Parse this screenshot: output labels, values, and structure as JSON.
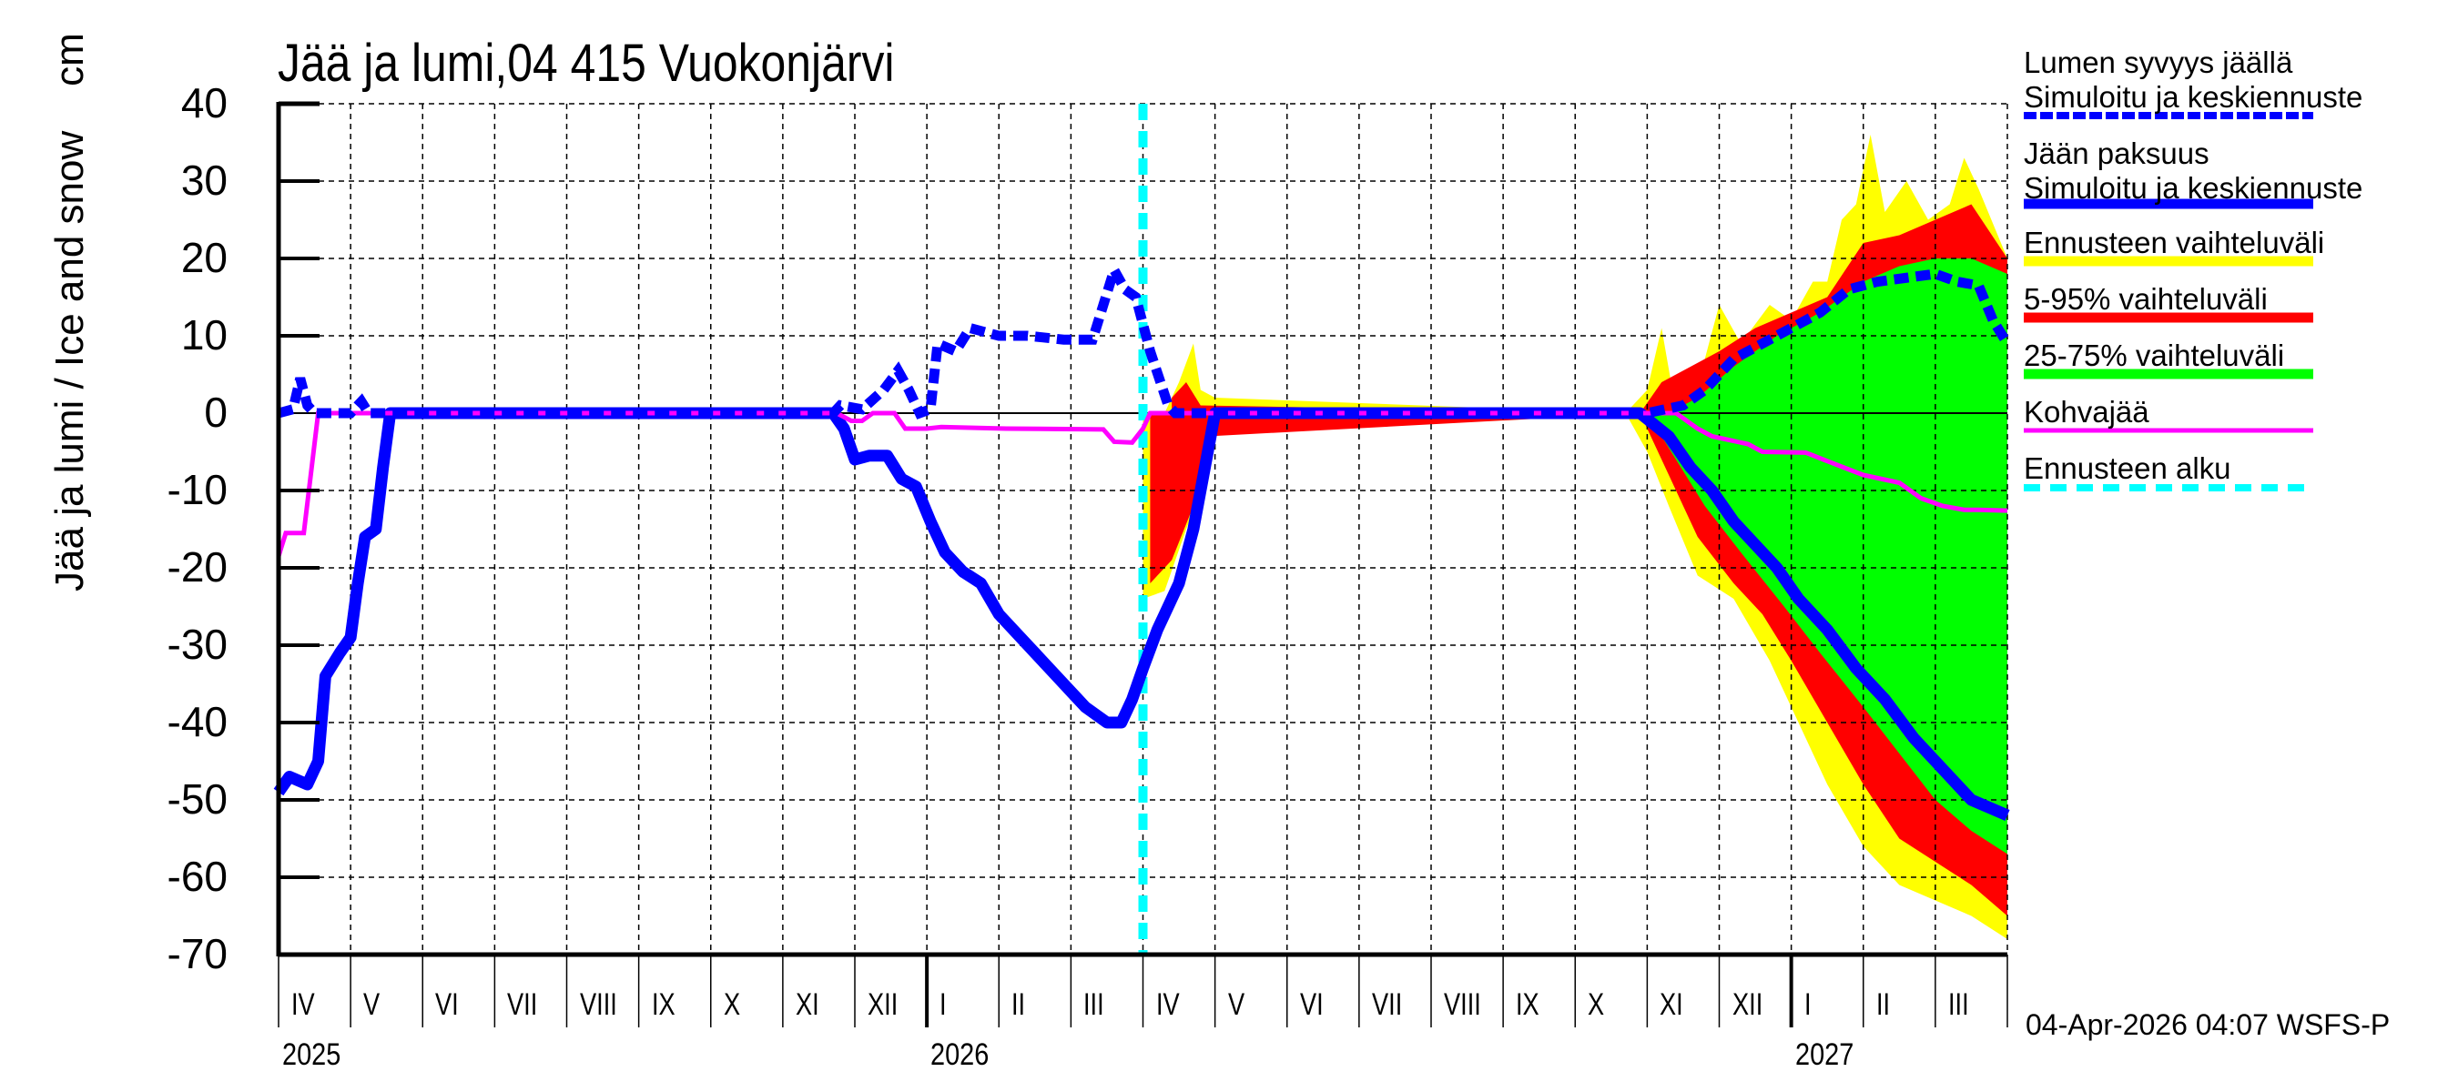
{
  "title": "Jää ja lumi,04 415 Vuokonjärvi",
  "y_axis_label": "Jää ja lumi / Ice and snow    cm",
  "timestamp": "04-Apr-2026 04:07 WSFS-P",
  "colors": {
    "snow": "#0000ff",
    "ice": "#0000ff",
    "range_full": "#ffff00",
    "range_5_95": "#ff0000",
    "range_25_75": "#00ff00",
    "slush_ice": "#ff00ff",
    "forecast_start": "#00ffff"
  },
  "legend": [
    {
      "line1": "Lumen syvyys jäällä",
      "line2": "Simuloitu ja keskiennuste",
      "style": "dashed",
      "color": "#0000ff"
    },
    {
      "line1": "Jään paksuus",
      "line2": "Simuloitu ja keskiennuste",
      "style": "solid-thick",
      "color": "#0000ff"
    },
    {
      "line1": "Ennusteen vaihteluväli",
      "style": "band",
      "color": "#ffff00"
    },
    {
      "line1": "5-95% vaihteluväli",
      "style": "band",
      "color": "#ff0000"
    },
    {
      "line1": "25-75% vaihteluväli",
      "style": "band",
      "color": "#00ff00"
    },
    {
      "line1": "Kohvajää",
      "style": "solid-thin",
      "color": "#ff00ff"
    },
    {
      "line1": "Ennusteen alku",
      "style": "dashed",
      "color": "#00ffff"
    }
  ],
  "x_axis": {
    "months": [
      "IV",
      "V",
      "VI",
      "VII",
      "VIII",
      "IX",
      "X",
      "XI",
      "XII",
      "I",
      "II",
      "III",
      "IV",
      "V",
      "VI",
      "VII",
      "VIII",
      "IX",
      "X",
      "XI",
      "XII",
      "I",
      "II",
      "III"
    ],
    "years": [
      {
        "label": "2025",
        "month_index": 0
      },
      {
        "label": "2026",
        "month_index": 9
      },
      {
        "label": "2027",
        "month_index": 21
      }
    ]
  },
  "y_axis": {
    "ticks": [
      "40",
      "30",
      "20",
      "10",
      "0",
      "-10",
      "-20",
      "-30",
      "-40",
      "-50",
      "-60",
      "-70"
    ]
  },
  "chart_data": {
    "type": "line",
    "title": "Jää ja lumi,04 415 Vuokonjärvi",
    "xlabel": "",
    "ylabel": "Jää ja lumi / Ice and snow cm",
    "ylim": [
      -70,
      40
    ],
    "xlim_months_from_2025_04": [
      0,
      24
    ],
    "grid": true,
    "legend_position": "right",
    "forecast_start_month": 12.0,
    "x_unit": "months since 1 Apr 2025",
    "series": [
      {
        "name": "Lumen syvyys jäällä (simuloitu ja keskiennuste)",
        "style": "dashed",
        "points": [
          [
            0,
            0
          ],
          [
            0.2,
            0.5
          ],
          [
            0.3,
            4.5
          ],
          [
            0.4,
            1
          ],
          [
            0.5,
            0
          ],
          [
            1.0,
            0
          ],
          [
            1.15,
            1.5
          ],
          [
            1.25,
            0
          ],
          [
            7.7,
            0
          ],
          [
            7.8,
            1
          ],
          [
            8.1,
            0.5
          ],
          [
            8.4,
            3
          ],
          [
            8.6,
            5.5
          ],
          [
            8.75,
            3
          ],
          [
            8.9,
            0
          ],
          [
            9.05,
            0.5
          ],
          [
            9.15,
            9
          ],
          [
            9.4,
            8
          ],
          [
            9.6,
            11
          ],
          [
            9.8,
            10.5
          ],
          [
            10.0,
            10
          ],
          [
            10.4,
            10
          ],
          [
            10.9,
            9.5
          ],
          [
            11.3,
            9.5
          ],
          [
            11.45,
            14
          ],
          [
            11.6,
            18.5
          ],
          [
            11.75,
            16
          ],
          [
            11.9,
            15
          ],
          [
            12.1,
            8
          ],
          [
            12.35,
            1
          ],
          [
            12.45,
            0
          ],
          [
            19.0,
            0
          ],
          [
            19.5,
            1
          ],
          [
            19.8,
            3
          ],
          [
            20.2,
            7
          ],
          [
            20.6,
            9
          ],
          [
            21.0,
            11
          ],
          [
            21.4,
            13
          ],
          [
            21.8,
            16
          ],
          [
            22.2,
            17
          ],
          [
            22.6,
            17.5
          ],
          [
            23.0,
            18
          ],
          [
            23.3,
            17
          ],
          [
            23.6,
            16.5
          ],
          [
            23.8,
            12
          ],
          [
            24.0,
            9
          ]
        ]
      },
      {
        "name": "Jään paksuus (simuloitu ja keskiennuste)",
        "style": "solid-thick",
        "points": [
          [
            0,
            -49
          ],
          [
            0.15,
            -47
          ],
          [
            0.4,
            -48
          ],
          [
            0.55,
            -45
          ],
          [
            0.65,
            -34
          ],
          [
            0.85,
            -31
          ],
          [
            1.0,
            -29
          ],
          [
            1.1,
            -22
          ],
          [
            1.2,
            -16
          ],
          [
            1.35,
            -15
          ],
          [
            1.45,
            -7
          ],
          [
            1.55,
            0
          ],
          [
            7.7,
            0
          ],
          [
            7.85,
            -2
          ],
          [
            8.0,
            -6
          ],
          [
            8.2,
            -5.5
          ],
          [
            8.45,
            -5.5
          ],
          [
            8.65,
            -8.5
          ],
          [
            8.85,
            -9.5
          ],
          [
            9.05,
            -14
          ],
          [
            9.25,
            -18
          ],
          [
            9.5,
            -20.5
          ],
          [
            9.75,
            -22
          ],
          [
            10.0,
            -26
          ],
          [
            10.3,
            -29
          ],
          [
            10.6,
            -32
          ],
          [
            10.9,
            -35
          ],
          [
            11.2,
            -38
          ],
          [
            11.5,
            -40
          ],
          [
            11.7,
            -40
          ],
          [
            11.85,
            -37
          ],
          [
            12.0,
            -33
          ],
          [
            12.2,
            -28
          ],
          [
            12.5,
            -22
          ],
          [
            12.7,
            -15
          ],
          [
            12.9,
            -5
          ],
          [
            13.0,
            0
          ],
          [
            18.9,
            0
          ],
          [
            19.3,
            -3
          ],
          [
            19.6,
            -7
          ],
          [
            19.9,
            -10
          ],
          [
            20.2,
            -14
          ],
          [
            20.5,
            -17
          ],
          [
            20.8,
            -20
          ],
          [
            21.1,
            -24
          ],
          [
            21.5,
            -28
          ],
          [
            21.9,
            -33
          ],
          [
            22.3,
            -37
          ],
          [
            22.7,
            -42
          ],
          [
            23.1,
            -46
          ],
          [
            23.5,
            -50
          ],
          [
            24.0,
            -52
          ]
        ]
      },
      {
        "name": "Kohvajää",
        "style": "solid-thin",
        "points": [
          [
            0,
            -18.5
          ],
          [
            0.1,
            -15.5
          ],
          [
            0.35,
            -15.5
          ],
          [
            0.55,
            0
          ],
          [
            7.75,
            0
          ],
          [
            7.95,
            -1
          ],
          [
            8.1,
            -1
          ],
          [
            8.25,
            0
          ],
          [
            8.55,
            0
          ],
          [
            8.7,
            -2
          ],
          [
            9.0,
            -2
          ],
          [
            9.2,
            -1.8
          ],
          [
            10.1,
            -2
          ],
          [
            11.45,
            -2.1
          ],
          [
            11.6,
            -3.7
          ],
          [
            11.85,
            -3.8
          ],
          [
            12.0,
            -2
          ],
          [
            12.1,
            0
          ],
          [
            19.4,
            0
          ],
          [
            19.7,
            -2
          ],
          [
            19.9,
            -3
          ],
          [
            20.4,
            -4
          ],
          [
            20.6,
            -5
          ],
          [
            21.2,
            -5.1
          ],
          [
            21.5,
            -6.2
          ],
          [
            22.0,
            -8
          ],
          [
            22.5,
            -9
          ],
          [
            22.8,
            -11
          ],
          [
            23.1,
            -12
          ],
          [
            23.4,
            -12.5
          ],
          [
            23.6,
            -12.5
          ],
          [
            24.0,
            -12.6
          ]
        ]
      }
    ],
    "bands": {
      "full_range": {
        "upper": [
          [
            12.3,
            0
          ],
          [
            12.5,
            4
          ],
          [
            12.7,
            9
          ],
          [
            12.8,
            3
          ],
          [
            13.0,
            2
          ],
          [
            18.7,
            0
          ],
          [
            19.0,
            3
          ],
          [
            19.2,
            11
          ],
          [
            19.35,
            3
          ],
          [
            19.8,
            7
          ],
          [
            20.0,
            14
          ],
          [
            20.3,
            9
          ],
          [
            20.7,
            14
          ],
          [
            21.0,
            12
          ],
          [
            21.3,
            17
          ],
          [
            21.5,
            17
          ],
          [
            21.7,
            25
          ],
          [
            21.9,
            27
          ],
          [
            22.1,
            36
          ],
          [
            22.3,
            26
          ],
          [
            22.6,
            30
          ],
          [
            22.9,
            25
          ],
          [
            23.2,
            27
          ],
          [
            23.4,
            33
          ],
          [
            23.6,
            29
          ],
          [
            24.0,
            20
          ]
        ],
        "lower": [
          [
            12.0,
            -24
          ],
          [
            12.3,
            -23
          ],
          [
            12.6,
            -15
          ],
          [
            12.9,
            -8
          ],
          [
            13.05,
            0
          ],
          [
            18.7,
            0
          ],
          [
            19.0,
            -5
          ],
          [
            19.3,
            -12
          ],
          [
            19.7,
            -21
          ],
          [
            20.2,
            -24
          ],
          [
            20.7,
            -32
          ],
          [
            21.1,
            -40
          ],
          [
            21.5,
            -48
          ],
          [
            22.0,
            -56
          ],
          [
            22.5,
            -61
          ],
          [
            23.0,
            -63
          ],
          [
            23.5,
            -65
          ],
          [
            24.0,
            -68
          ]
        ]
      },
      "p5_95": {
        "upper": [
          [
            12.4,
            2
          ],
          [
            12.6,
            4
          ],
          [
            12.8,
            1
          ],
          [
            18.9,
            0
          ],
          [
            19.2,
            4
          ],
          [
            19.6,
            6
          ],
          [
            20.0,
            8
          ],
          [
            20.5,
            11
          ],
          [
            21.0,
            13
          ],
          [
            21.5,
            15
          ],
          [
            22.0,
            22
          ],
          [
            22.5,
            23
          ],
          [
            23.0,
            25
          ],
          [
            23.5,
            27
          ],
          [
            24.0,
            20
          ]
        ],
        "lower": [
          [
            12.1,
            -22
          ],
          [
            12.4,
            -19
          ],
          [
            12.7,
            -12
          ],
          [
            12.9,
            -3
          ],
          [
            18.9,
            0
          ],
          [
            19.3,
            -8
          ],
          [
            19.7,
            -16
          ],
          [
            20.2,
            -22
          ],
          [
            20.6,
            -26
          ],
          [
            21.0,
            -32
          ],
          [
            21.5,
            -40
          ],
          [
            22.0,
            -48
          ],
          [
            22.5,
            -55
          ],
          [
            23.0,
            -58
          ],
          [
            23.5,
            -61
          ],
          [
            24.0,
            -65
          ]
        ]
      },
      "p25_75": {
        "upper": [
          [
            19.3,
            0
          ],
          [
            19.7,
            2
          ],
          [
            20.2,
            6
          ],
          [
            20.8,
            10
          ],
          [
            21.4,
            13
          ],
          [
            22.0,
            17
          ],
          [
            22.5,
            19
          ],
          [
            23.0,
            20
          ],
          [
            23.5,
            20
          ],
          [
            24.0,
            18
          ]
        ],
        "lower": [
          [
            19.0,
            0
          ],
          [
            19.4,
            -6
          ],
          [
            19.8,
            -12
          ],
          [
            20.3,
            -18
          ],
          [
            20.9,
            -25
          ],
          [
            21.4,
            -31
          ],
          [
            22.0,
            -38
          ],
          [
            22.5,
            -44
          ],
          [
            23.0,
            -50
          ],
          [
            23.5,
            -54
          ],
          [
            24.0,
            -57
          ]
        ]
      }
    }
  }
}
